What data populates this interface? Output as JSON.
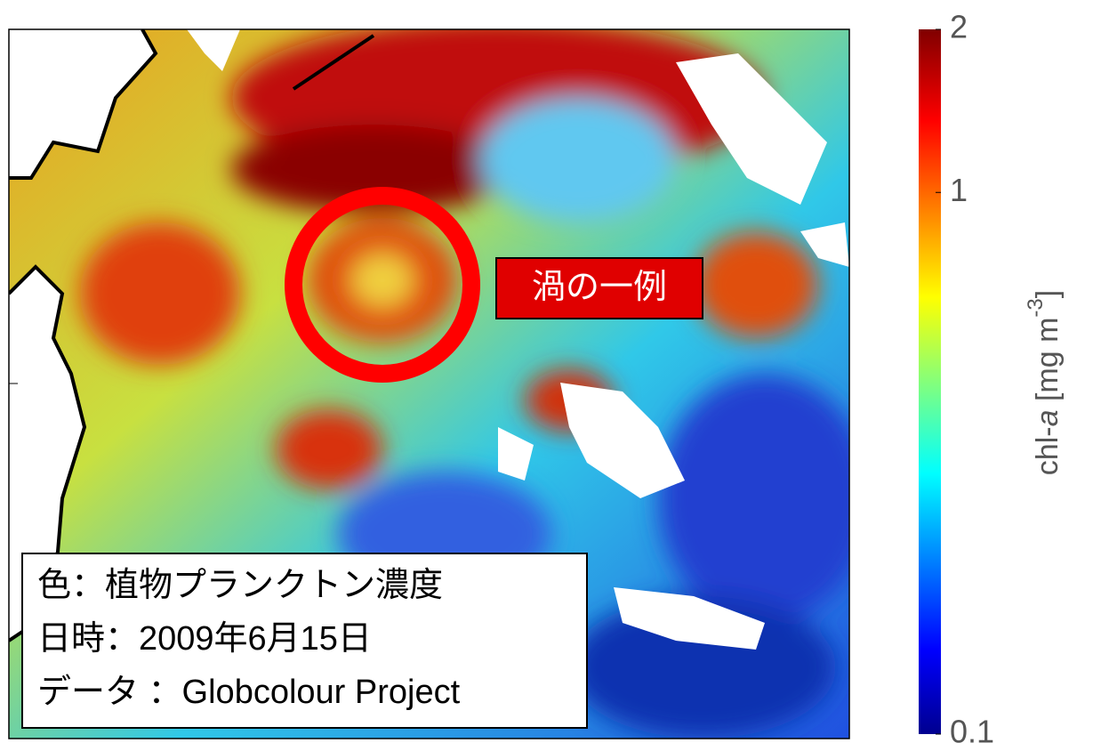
{
  "annotation": "渦の一例",
  "caption": {
    "lines": [
      "色：植物プランクトン濃度",
      "日時：2009年6月15日",
      "データ ：Globcolour Project"
    ]
  },
  "colorbar": {
    "label": {
      "prefix": "chl-",
      "italic": "a",
      "main": " [mg m",
      "sup": "-3",
      "close": "]"
    },
    "lim": [
      0.1,
      2
    ],
    "ticks": [
      0.1,
      1,
      2
    ],
    "log_scale": true
  }
}
